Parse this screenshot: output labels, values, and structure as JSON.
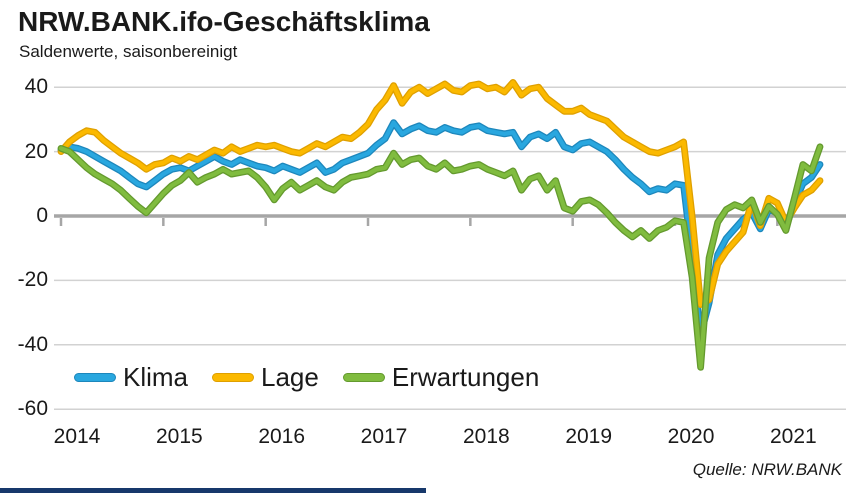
{
  "header": {
    "title": "NRW.BANK.ifo-Geschäftsklima",
    "subtitle": "Saldenwerte, saisonbereinigt"
  },
  "footer": {
    "source": "Quelle: NRW.BANK"
  },
  "colors": {
    "background": "#ffffff",
    "text": "#1a1a1a",
    "gridline": "#d2d2d2",
    "zero_axis": "#a6a6a6",
    "footer_bar": "#17386b",
    "klima": "#29a7df",
    "klima_edge": "#1d87bc",
    "lage": "#fbb900",
    "lage_edge": "#dfa000",
    "erwartungen": "#80bc3f",
    "erwartungen_edge": "#649a2e"
  },
  "chart_data": {
    "type": "line",
    "title": "NRW.BANK.ifo-Geschäftsklima",
    "subtitle": "Saldenwerte, saisonbereinigt",
    "x_range": [
      "2014-01",
      "2021-06"
    ],
    "x_interval": "monthly",
    "x_tick_labels": [
      "2014",
      "2015",
      "2016",
      "2017",
      "2018",
      "2019",
      "2020",
      "2021"
    ],
    "y_ticks": [
      40,
      20,
      0,
      -20,
      -40,
      -60
    ],
    "ylim": [
      -60,
      45
    ],
    "grid": "horizontal",
    "legend_position": "inside-bottom-left",
    "source": "Quelle: NRW.BANK",
    "series": [
      {
        "name": "Klima",
        "color": "#29a7df",
        "values": [
          20.5,
          21.5,
          21,
          20,
          18.5,
          17,
          15.5,
          14,
          12,
          10,
          9,
          11,
          13,
          14.5,
          15,
          14,
          15.5,
          17,
          18.5,
          17,
          16,
          17.5,
          16.5,
          15.5,
          15,
          14,
          15.5,
          14.5,
          13.5,
          15,
          16.5,
          13.5,
          14.5,
          16.5,
          17.5,
          18.5,
          19.5,
          22,
          24,
          29,
          25.5,
          27,
          28,
          26.5,
          26,
          27.5,
          26.5,
          26,
          27.5,
          28,
          26.5,
          26,
          25.5,
          26,
          21.5,
          24.5,
          25.5,
          24,
          26,
          21.5,
          20.5,
          22.5,
          23,
          21.5,
          20,
          17.5,
          14.5,
          12,
          10,
          7.5,
          8.5,
          8,
          10,
          9.5,
          -13,
          -37,
          -27,
          -12,
          -7,
          -4,
          -1,
          1,
          -4,
          2,
          1,
          -3.5,
          4,
          10,
          12,
          16
        ]
      },
      {
        "name": "Lage",
        "color": "#fbb900",
        "values": [
          20,
          23,
          25,
          26.5,
          26,
          23.5,
          21.5,
          19.5,
          18,
          16.5,
          14.5,
          16,
          16.5,
          18,
          17,
          18.5,
          17.5,
          19,
          20.5,
          19.5,
          21.5,
          20,
          21,
          22,
          21.5,
          22,
          21,
          20,
          19.5,
          21,
          22.5,
          21.5,
          23,
          24.5,
          24,
          26,
          28.5,
          33,
          36,
          40.5,
          35,
          38.5,
          40,
          38,
          39.5,
          41,
          39,
          38.5,
          40.5,
          41,
          39.5,
          40,
          38.5,
          41.5,
          37.5,
          39.5,
          40,
          36.5,
          34.5,
          32.5,
          32.5,
          33.5,
          31.5,
          30.5,
          29.5,
          27,
          24.5,
          23,
          21.5,
          20,
          19.5,
          20.5,
          21.5,
          23,
          0,
          -27.5,
          -26,
          -15,
          -11,
          -8,
          -5,
          4.5,
          -3,
          5.5,
          4,
          -2,
          2.5,
          6.5,
          8,
          11
        ]
      },
      {
        "name": "Erwartungen",
        "color": "#80bc3f",
        "values": [
          21,
          20,
          17.5,
          15,
          13,
          11.5,
          10,
          8,
          5.5,
          3,
          1,
          4,
          7,
          9.5,
          11,
          13.5,
          10.5,
          12,
          13,
          14.5,
          13,
          13.5,
          14,
          12,
          9,
          5,
          8.5,
          10.5,
          8,
          9.5,
          11,
          9,
          8,
          10.5,
          12,
          12.5,
          13,
          14.5,
          15,
          19.5,
          16,
          17.5,
          18,
          15.5,
          14.5,
          16.5,
          14,
          14.5,
          15.5,
          16,
          14.5,
          13.5,
          12.5,
          14,
          8,
          11.5,
          12.5,
          8,
          11,
          2.5,
          1.5,
          4.5,
          5,
          3.5,
          1,
          -2,
          -4.5,
          -6.5,
          -4.5,
          -7,
          -4.5,
          -3.5,
          -1.5,
          -2,
          -19,
          -47,
          -13,
          -2,
          2,
          3.5,
          2.5,
          5,
          -2,
          3,
          0.5,
          -4.5,
          5.5,
          16,
          14,
          21.5
        ]
      }
    ]
  }
}
